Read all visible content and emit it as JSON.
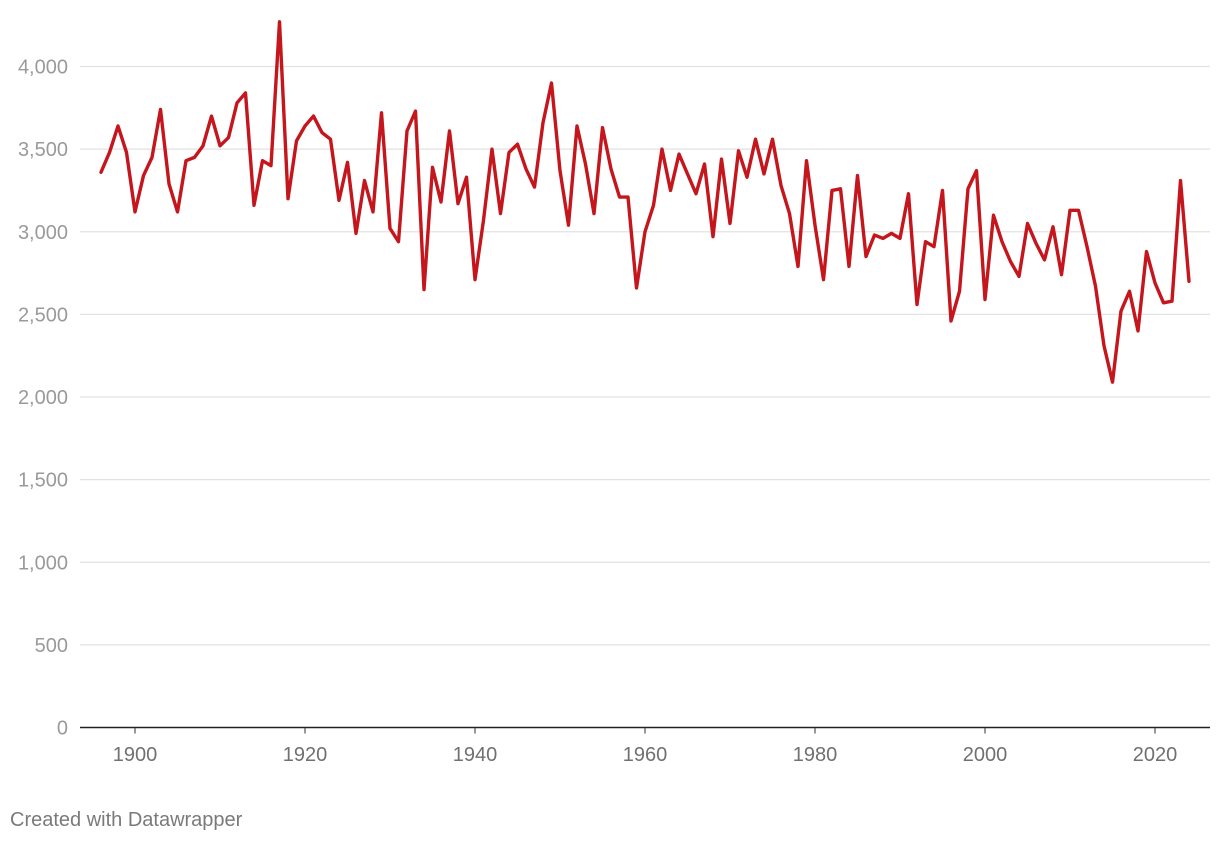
{
  "footer": {
    "credit": "Created with Datawrapper"
  },
  "colors": {
    "series": "#c4161c",
    "grid": "#e2e2e2",
    "axis": "#222222"
  },
  "chart_data": {
    "type": "line",
    "title": "",
    "xlabel": "",
    "ylabel": "",
    "xlim": [
      1896,
      2024
    ],
    "ylim": [
      0,
      4000
    ],
    "yticks": [
      {
        "value": 0,
        "label": "0"
      },
      {
        "value": 500,
        "label": "500"
      },
      {
        "value": 1000,
        "label": "1,000"
      },
      {
        "value": 1500,
        "label": "1,500"
      },
      {
        "value": 2000,
        "label": "2,000"
      },
      {
        "value": 2500,
        "label": "2,500"
      },
      {
        "value": 3000,
        "label": "3,000"
      },
      {
        "value": 3500,
        "label": "3,500"
      },
      {
        "value": 4000,
        "label": "4,000"
      }
    ],
    "xticks": [
      {
        "value": 1900,
        "label": "1900"
      },
      {
        "value": 1920,
        "label": "1920"
      },
      {
        "value": 1940,
        "label": "1940"
      },
      {
        "value": 1960,
        "label": "1960"
      },
      {
        "value": 1980,
        "label": "1980"
      },
      {
        "value": 2000,
        "label": "2000"
      },
      {
        "value": 2020,
        "label": "2020"
      }
    ],
    "grid": true,
    "legend": "none",
    "series": [
      {
        "x": [
          1896,
          1897,
          1898,
          1899,
          1900,
          1901,
          1902,
          1903,
          1904,
          1905,
          1906,
          1907,
          1908,
          1909,
          1910,
          1911,
          1912,
          1913,
          1914,
          1915,
          1916,
          1917,
          1918,
          1919,
          1920,
          1921,
          1922,
          1923,
          1924,
          1925,
          1926,
          1927,
          1928,
          1929,
          1930,
          1931,
          1932,
          1933,
          1934,
          1935,
          1936,
          1937,
          1938,
          1939,
          1940,
          1941,
          1942,
          1943,
          1944,
          1945,
          1946,
          1947,
          1948,
          1949,
          1950,
          1951,
          1952,
          1953,
          1954,
          1955,
          1956,
          1957,
          1958,
          1959,
          1960,
          1961,
          1962,
          1963,
          1964,
          1965,
          1966,
          1967,
          1968,
          1969,
          1970,
          1971,
          1972,
          1973,
          1974,
          1975,
          1976,
          1977,
          1978,
          1979,
          1980,
          1981,
          1982,
          1983,
          1984,
          1985,
          1986,
          1987,
          1988,
          1989,
          1990,
          1991,
          1992,
          1993,
          1994,
          1995,
          1996,
          1997,
          1998,
          1999,
          2000,
          2001,
          2002,
          2003,
          2004,
          2005,
          2006,
          2007,
          2008,
          2009,
          2010,
          2011,
          2012,
          2013,
          2014,
          2015,
          2016,
          2017,
          2018,
          2019,
          2020,
          2021,
          2022,
          2023,
          2024
        ],
        "y": [
          3360,
          3480,
          3640,
          3480,
          3120,
          3340,
          3450,
          3740,
          3290,
          3120,
          3430,
          3450,
          3520,
          3700,
          3520,
          3570,
          3780,
          3840,
          3160,
          3430,
          3400,
          4270,
          3200,
          3550,
          3640,
          3700,
          3600,
          3560,
          3190,
          3420,
          2990,
          3310,
          3120,
          3720,
          3020,
          2940,
          3610,
          3730,
          2650,
          3390,
          3180,
          3610,
          3170,
          3330,
          2710,
          3070,
          3500,
          3110,
          3480,
          3530,
          3380,
          3270,
          3660,
          3900,
          3370,
          3040,
          3640,
          3410,
          3110,
          3630,
          3380,
          3210,
          3210,
          2660,
          3000,
          3160,
          3500,
          3250,
          3470,
          3350,
          3230,
          3410,
          2970,
          3440,
          3050,
          3490,
          3330,
          3560,
          3350,
          3560,
          3280,
          3110,
          2790,
          3430,
          3040,
          2710,
          3250,
          3260,
          2790,
          3340,
          2850,
          2980,
          2960,
          2990,
          2960,
          3230,
          2560,
          2940,
          2910,
          3250,
          2460,
          2640,
          3260,
          3370,
          2590,
          3100,
          2940,
          2820,
          2730,
          3050,
          2930,
          2830,
          3030,
          2740,
          3130,
          3130,
          2910,
          2670,
          2310,
          2090,
          2520,
          2640,
          2400,
          2880,
          2690,
          2570,
          2580,
          3310,
          2700
        ]
      }
    ]
  }
}
